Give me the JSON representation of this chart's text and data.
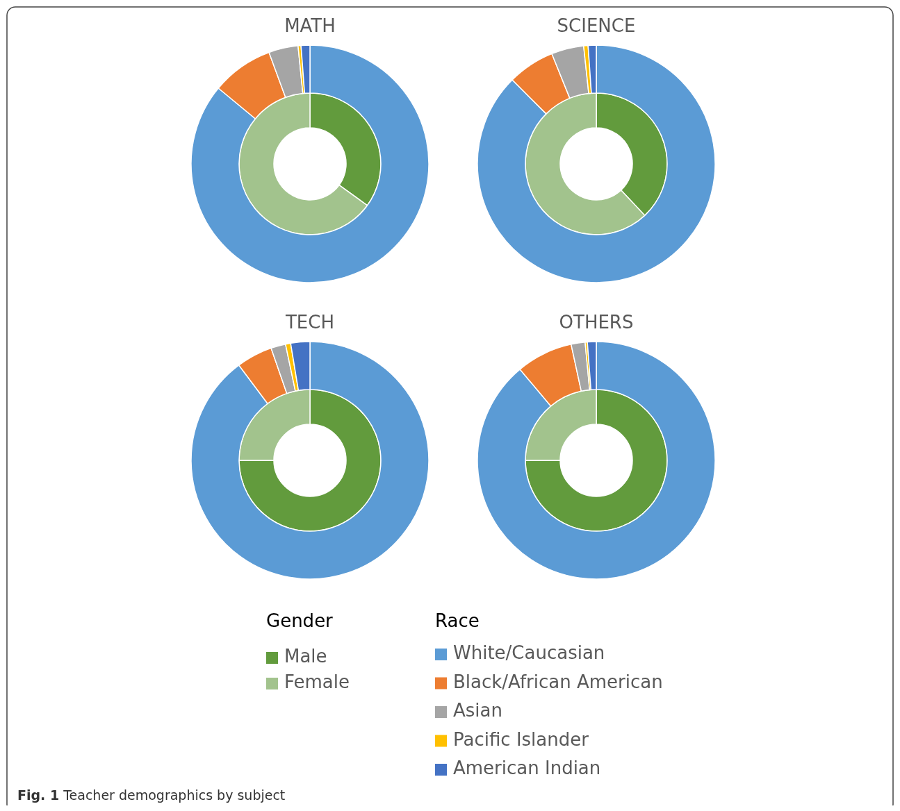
{
  "chart_data": [
    {
      "type": "donut",
      "title": "MATH",
      "legend": "bottom",
      "legend_title": "Gender",
      "categories": [
        "Male",
        "Female"
      ],
      "values": [
        35,
        65
      ],
      "colors": [
        "#629b3d",
        "#a2c38d"
      ],
      "annotations": [
        "Fig. 1 Teacher demographics by subject"
      ]
    },
    {
      "type": "donut",
      "legend": "bottom",
      "legend_title": "Race",
      "categories": [
        "White/Caucasian",
        "Black/African American",
        "Asian",
        "Pacific Islander",
        "American Indian"
      ],
      "values": [
        86,
        8.4,
        4,
        0.4,
        1.2
      ],
      "colors": [
        "#5b9bd5",
        "#ed7d31",
        "#a5a5a5",
        "#ffc000",
        "#4472c4"
      ]
    },
    {
      "type": "donut",
      "title": "SCIENCE",
      "categories": [
        null,
        null
      ],
      "values": [
        38,
        62
      ],
      "colors": [
        "#629b3d",
        "#a2c38d"
      ]
    },
    {
      "type": "donut",
      "categories": [
        null,
        null,
        null,
        null,
        null
      ],
      "values": [
        87.5,
        6.4,
        4.4,
        0.6,
        1.1
      ],
      "colors": [
        "#5b9bd5",
        "#ed7d31",
        "#a5a5a5",
        "#ffc000",
        "#4472c4"
      ]
    },
    {
      "type": "donut",
      "title": "TECH",
      "categories": [
        null,
        null
      ],
      "values": [
        75,
        25
      ],
      "colors": [
        "#629b3d",
        "#a2c38d"
      ]
    },
    {
      "type": "donut",
      "categories": [
        null,
        null,
        null,
        null,
        null
      ],
      "values": [
        89.8,
        4.9,
        2,
        0.7,
        2.6
      ],
      "colors": [
        "#5b9bd5",
        "#ed7d31",
        "#a5a5a5",
        "#ffc000",
        "#4472c4"
      ]
    },
    {
      "type": "donut",
      "title": "OTHERS",
      "categories": [
        null,
        null
      ],
      "values": [
        75,
        25
      ],
      "colors": [
        "#629b3d",
        "#a2c38d"
      ]
    },
    {
      "type": "donut",
      "categories": [
        null,
        null,
        null,
        null,
        null
      ],
      "values": [
        88.9,
        7.7,
        1.9,
        0.3,
        1.2
      ],
      "colors": [
        "#5b9bd5",
        "#ed7d31",
        "#a5a5a5",
        "#ffc000",
        "#4472c4"
      ]
    }
  ]
}
